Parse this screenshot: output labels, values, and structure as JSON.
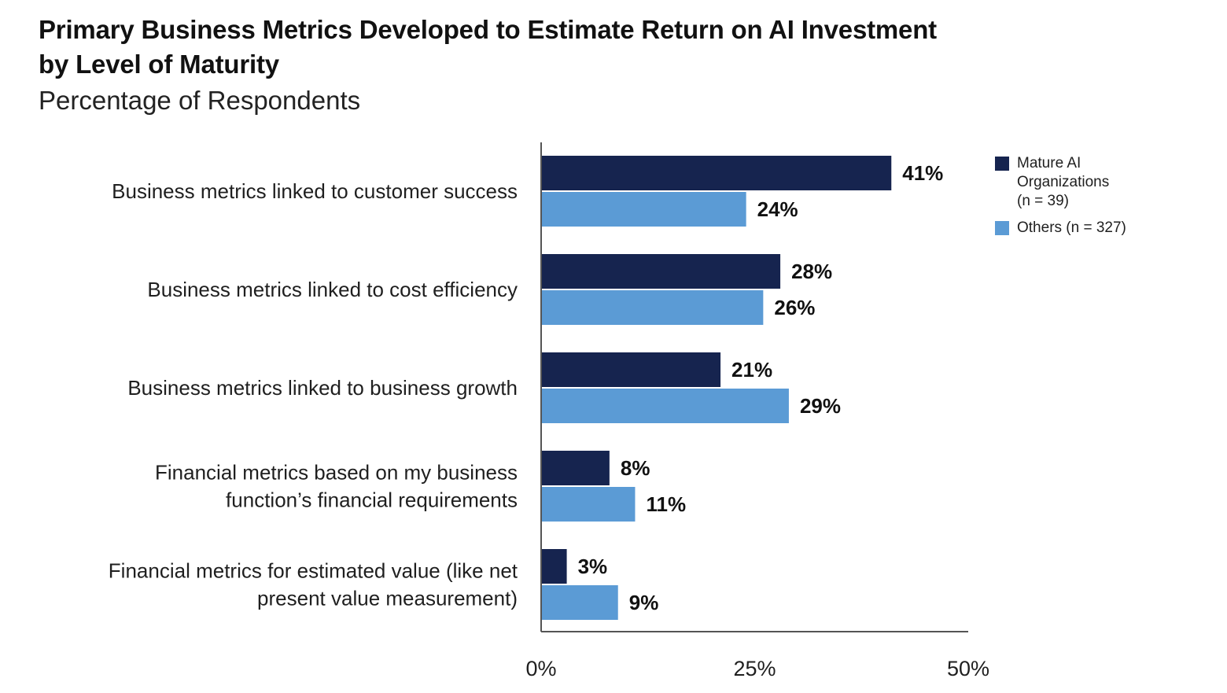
{
  "header": {
    "title_line1": "Primary Business Metrics Developed to Estimate Return on AI Investment",
    "title_line2": "by Level of Maturity",
    "subtitle": "Percentage of Respondents"
  },
  "legend": {
    "mature_line1": "Mature AI",
    "mature_line2": "Organizations",
    "mature_line3": "(n = 39)",
    "others": "Others (n = 327)"
  },
  "colors": {
    "mature": "#16244f",
    "others": "#5b9bd5",
    "axis": "#555555"
  },
  "chart_data": {
    "type": "bar",
    "orientation": "horizontal",
    "title": "Primary Business Metrics Developed to Estimate Return on AI Investment by Level of Maturity",
    "subtitle": "Percentage of Respondents",
    "categories": [
      [
        "Business metrics linked to customer success"
      ],
      [
        "Business metrics linked to cost efficiency"
      ],
      [
        "Business metrics linked to business growth"
      ],
      [
        "Financial metrics based on my business",
        "function’s financial requirements"
      ],
      [
        "Financial metrics for estimated value (like net",
        "present value measurement)"
      ]
    ],
    "series": [
      {
        "name": "Mature AI Organizations (n = 39)",
        "values": [
          41,
          28,
          21,
          8,
          3
        ],
        "labels": [
          "41%",
          "28%",
          "21%",
          "8%",
          "3%"
        ]
      },
      {
        "name": "Others (n = 327)",
        "values": [
          24,
          26,
          29,
          11,
          9
        ],
        "labels": [
          "24%",
          "26%",
          "29%",
          "11%",
          "9%"
        ]
      }
    ],
    "xlim": [
      0,
      50
    ],
    "xticks": [
      0,
      25,
      50
    ],
    "xtick_labels": [
      "0%",
      "25%",
      "50%"
    ],
    "xlabel": "",
    "ylabel": "",
    "grid": false,
    "legend_position": "right"
  }
}
